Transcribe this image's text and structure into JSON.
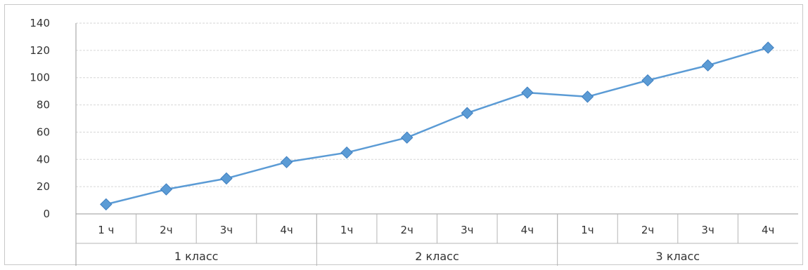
{
  "chart_data": {
    "type": "line",
    "title": "",
    "xlabel": "",
    "ylabel": "",
    "ylim": [
      0,
      140
    ],
    "y_ticks": [
      0,
      20,
      40,
      60,
      80,
      100,
      120,
      140
    ],
    "grid": true,
    "legend": "none",
    "categories": [
      "1 ч",
      "2ч",
      "3ч",
      "4ч",
      "1ч",
      "2ч",
      "3ч",
      "4ч",
      "1ч",
      "2ч",
      "3ч",
      "4ч"
    ],
    "groups": [
      {
        "label": "1 класс",
        "span": 4
      },
      {
        "label": "2 класс",
        "span": 4
      },
      {
        "label": "3 класс",
        "span": 4
      }
    ],
    "series": [
      {
        "values": [
          7,
          18,
          26,
          38,
          45,
          56,
          74,
          89,
          86,
          98,
          109,
          122
        ],
        "color": "#5b9bd5",
        "marker": "diamond"
      }
    ]
  }
}
